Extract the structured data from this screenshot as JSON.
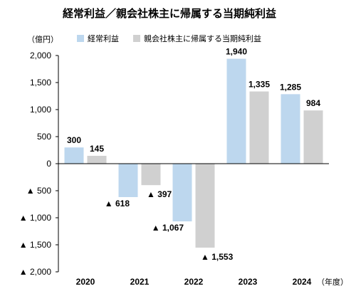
{
  "chart_data": {
    "type": "bar",
    "title": "経常利益／親会社株主に帰属する当期純利益",
    "unit_label": "（億円）",
    "x_unit_label": "（年度）",
    "categories": [
      "2020",
      "2021",
      "2022",
      "2023",
      "2024"
    ],
    "series": [
      {
        "name": "経常利益",
        "color": "#bdd7ee",
        "values": [
          300,
          -618,
          -1067,
          1940,
          1285
        ],
        "labels": [
          "300",
          "▲ 618",
          "▲ 1,067",
          "1,940",
          "1,285"
        ]
      },
      {
        "name": "親会社株主に帰属する当期純利益",
        "color": "#d0d0d0",
        "values": [
          145,
          -397,
          -1553,
          1335,
          984
        ],
        "labels": [
          "145",
          "▲ 397",
          "▲ 1,553",
          "1,335",
          "984"
        ]
      }
    ],
    "ylim": [
      -2000,
      2000
    ],
    "yticks": [
      2000,
      1500,
      1000,
      500,
      0,
      -500,
      -1000,
      -1500,
      -2000
    ],
    "ytick_labels": [
      "2,000",
      "1,500",
      "1,000",
      "500",
      "0",
      "▲ 500",
      "▲ 1,000",
      "▲ 1,500",
      "▲ 2,000"
    ],
    "grid": false,
    "legend_position": "top"
  }
}
